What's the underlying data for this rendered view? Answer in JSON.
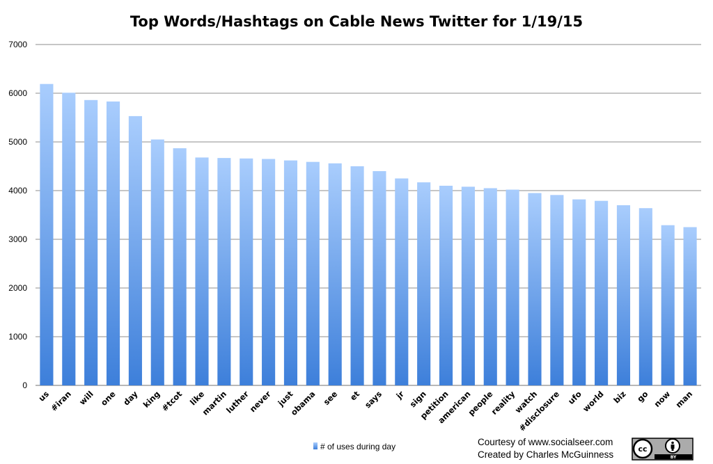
{
  "chart_data": {
    "type": "bar",
    "title": "Top Words/Hashtags on Cable News Twitter for 1/19/15",
    "xlabel": "",
    "ylabel": "",
    "ylim": [
      0,
      7000
    ],
    "yticks": [
      0,
      1000,
      2000,
      3000,
      4000,
      5000,
      6000,
      7000
    ],
    "grid": true,
    "legend_position": "bottom-center",
    "categories": [
      "us",
      "#iran",
      "will",
      "one",
      "day",
      "king",
      "#tcot",
      "like",
      "martin",
      "luther",
      "never",
      "just",
      "obama",
      "see",
      "et",
      "says",
      "jr",
      "sign",
      "petition",
      "american",
      "people",
      "reality",
      "watch",
      "#disclosure",
      "ufo",
      "world",
      "biz",
      "go",
      "now",
      "man"
    ],
    "series": [
      {
        "name": "# of uses during day",
        "values": [
          6190,
          6010,
          5860,
          5830,
          5530,
          5050,
          4870,
          4680,
          4670,
          4660,
          4650,
          4620,
          4590,
          4560,
          4500,
          4400,
          4250,
          4170,
          4100,
          4080,
          4050,
          4020,
          3950,
          3910,
          3820,
          3790,
          3700,
          3640,
          3290,
          3250
        ]
      }
    ],
    "colors": {
      "bar_top": "#a9cdfd",
      "bar_bottom": "#3d7fda",
      "gridline": "#8c8c8c"
    }
  },
  "credits": {
    "line1": "Courtesy of www.socialseer.com",
    "line2": "Created by Charles McGuinness"
  },
  "license_badge": {
    "icon": "creative-commons-by-icon",
    "letters": "cc",
    "caption": "BY"
  }
}
